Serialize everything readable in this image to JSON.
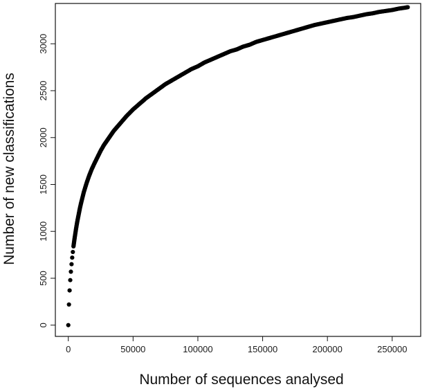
{
  "chart_data": {
    "type": "scatter",
    "title": "",
    "xlabel": "Number of sequences analysed",
    "ylabel": "Number of new classifications",
    "xlim": [
      -10000,
      272000
    ],
    "ylim": [
      -120,
      3430
    ],
    "x_ticks": [
      0,
      50000,
      100000,
      150000,
      200000,
      250000
    ],
    "x_tick_labels": [
      "0",
      "50000",
      "100000",
      "150000",
      "200000",
      "250000"
    ],
    "y_ticks": [
      0,
      500,
      1000,
      1500,
      2000,
      2500,
      3000
    ],
    "y_tick_labels": [
      "0",
      "500",
      "1000",
      "1500",
      "2000",
      "2500",
      "3000"
    ],
    "grid": false,
    "point_color": "#000000",
    "series": [
      {
        "x": [
          0,
          500,
          1000,
          1500,
          2000,
          2500,
          3000,
          3500,
          4000,
          5000,
          6000,
          7000,
          8000,
          9000,
          10000,
          12000,
          14000,
          16000,
          18000,
          20000,
          22500,
          25000,
          27500,
          30000,
          32500,
          35000,
          37500,
          40000,
          45000,
          50000,
          55000,
          60000,
          65000,
          70000,
          75000,
          80000,
          85000,
          90000,
          95000,
          100000,
          105000,
          110000,
          115000,
          120000,
          125000,
          130000,
          135000,
          140000,
          145000,
          150000,
          155000,
          160000,
          165000,
          170000,
          175000,
          180000,
          185000,
          190000,
          195000,
          200000,
          205000,
          210000,
          215000,
          220000,
          225000,
          230000,
          235000,
          240000,
          245000,
          250000,
          255000,
          260000,
          262000
        ],
        "y": [
          0,
          220,
          370,
          480,
          570,
          650,
          720,
          780,
          840,
          940,
          1030,
          1110,
          1180,
          1250,
          1310,
          1420,
          1510,
          1590,
          1660,
          1720,
          1790,
          1860,
          1920,
          1970,
          2020,
          2070,
          2110,
          2150,
          2230,
          2300,
          2360,
          2420,
          2470,
          2520,
          2570,
          2610,
          2650,
          2690,
          2730,
          2760,
          2800,
          2830,
          2860,
          2890,
          2920,
          2940,
          2970,
          2990,
          3020,
          3040,
          3060,
          3080,
          3100,
          3120,
          3140,
          3160,
          3180,
          3200,
          3215,
          3230,
          3245,
          3260,
          3275,
          3285,
          3300,
          3315,
          3325,
          3340,
          3350,
          3360,
          3375,
          3385,
          3390
        ]
      }
    ]
  }
}
